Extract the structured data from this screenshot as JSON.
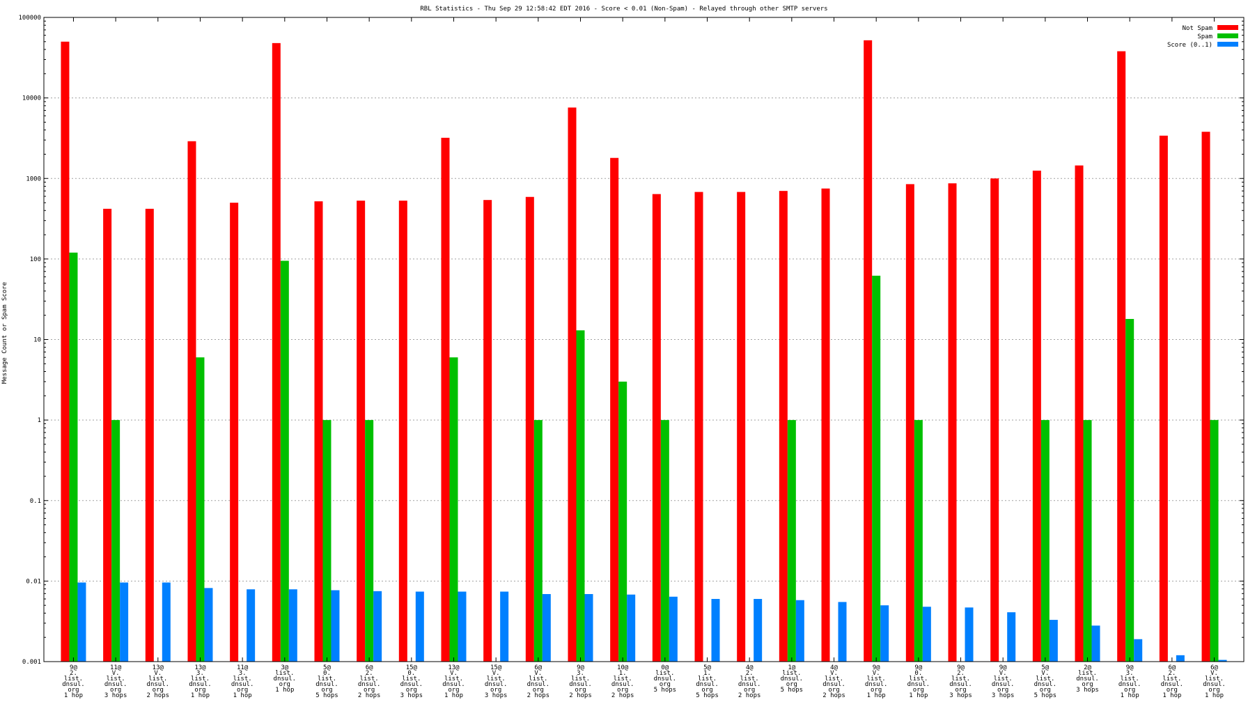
{
  "chart_data": {
    "type": "bar",
    "title": "RBL Statistics - Thu Sep 29 12:58:42 EDT 2016 - Score < 0.01 (Non-Spam) - Relayed through other SMTP servers",
    "xlabel": "",
    "ylabel": "Message Count or Spam Score",
    "yscale": "log",
    "ylim": [
      0.001,
      100000
    ],
    "yticks": [
      "0.001",
      "0.01",
      "0.1",
      "1",
      "10",
      "100",
      "1000",
      "10000",
      "100000"
    ],
    "grid": true,
    "legend_position": "top-right",
    "categories": [
      [
        "9@",
        "2.",
        "list.",
        "dnsul.",
        "org",
        "1 hop"
      ],
      [
        "11@",
        "V.",
        "list.",
        "dnsul.",
        "org",
        "3 hops"
      ],
      [
        "13@",
        "V.",
        "list.",
        "dnsul.",
        "org",
        "2 hops"
      ],
      [
        "13@",
        "3.",
        "list.",
        "dnsul.",
        "org",
        "1 hop"
      ],
      [
        "11@",
        "3.",
        "list.",
        "dnsul.",
        "org",
        "1 hop"
      ],
      [
        "3@",
        "list.",
        "dnsul.",
        "org",
        "1 hop"
      ],
      [
        "5@",
        "0.",
        "list.",
        "dnsul.",
        "org",
        "5 hops"
      ],
      [
        "6@",
        "2.",
        "list.",
        "dnsul.",
        "org",
        "2 hops"
      ],
      [
        "15@",
        "0.",
        "list.",
        "dnsul.",
        "org",
        "3 hops"
      ],
      [
        "13@",
        "V.",
        "list.",
        "dnsul.",
        "org",
        "1 hop"
      ],
      [
        "15@",
        "V.",
        "list.",
        "dnsul.",
        "org",
        "3 hops"
      ],
      [
        "6@",
        "V.",
        "list.",
        "dnsul.",
        "org",
        "2 hops"
      ],
      [
        "9@",
        "3.",
        "list.",
        "dnsul.",
        "org",
        "2 hops"
      ],
      [
        "10@",
        "1.",
        "list.",
        "dnsul.",
        "org",
        "2 hops"
      ],
      [
        "0@",
        "list.",
        "dnsul.",
        "org",
        "5 hops"
      ],
      [
        "5@",
        "1.",
        "list.",
        "dnsul.",
        "org",
        "5 hops"
      ],
      [
        "4@",
        "2.",
        "list.",
        "dnsul.",
        "org",
        "2 hops"
      ],
      [
        "1@",
        "list.",
        "dnsul.",
        "org",
        "5 hops"
      ],
      [
        "4@",
        "V.",
        "list.",
        "dnsul.",
        "org",
        "2 hops"
      ],
      [
        "9@",
        "V.",
        "list.",
        "dnsul.",
        "org",
        "1 hop"
      ],
      [
        "9@",
        "0.",
        "list.",
        "dnsul.",
        "org",
        "1 hop"
      ],
      [
        "9@",
        "2.",
        "list.",
        "dnsul.",
        "org",
        "3 hops"
      ],
      [
        "9@",
        "V.",
        "list.",
        "dnsul.",
        "org",
        "3 hops"
      ],
      [
        "5@",
        "V.",
        "list.",
        "dnsul.",
        "org",
        "5 hops"
      ],
      [
        "2@",
        "list.",
        "dnsul.",
        "org",
        "3 hops"
      ],
      [
        "9@",
        "3.",
        "list.",
        "dnsul.",
        "org",
        "1 hop"
      ],
      [
        "6@",
        "2.",
        "list.",
        "dnsul.",
        "org",
        "1 hop"
      ],
      [
        "6@",
        "V.",
        "list.",
        "dnsul.",
        "org",
        "1 hop"
      ]
    ],
    "series": [
      {
        "name": "Not Spam",
        "color": "#ff0000",
        "values": [
          50000,
          420,
          420,
          2900,
          500,
          48000,
          520,
          530,
          530,
          3200,
          540,
          590,
          7600,
          1800,
          640,
          680,
          680,
          700,
          750,
          52000,
          850,
          870,
          1000,
          1250,
          1450,
          38000,
          3400,
          3800
        ]
      },
      {
        "name": "Spam",
        "color": "#00c000",
        "values": [
          120,
          1,
          null,
          6,
          null,
          95,
          1,
          1,
          null,
          6,
          null,
          1,
          13,
          3,
          1,
          null,
          null,
          1,
          null,
          62,
          1,
          null,
          null,
          1,
          1,
          18,
          null,
          1
        ]
      },
      {
        "name": "Score (0..1)",
        "color": "#0080ff",
        "values": [
          0.0096,
          0.0096,
          0.0096,
          0.0082,
          0.0079,
          0.0079,
          0.0077,
          0.0075,
          0.0074,
          0.0074,
          0.0074,
          0.0069,
          0.0069,
          0.0068,
          0.0064,
          0.006,
          0.006,
          0.0058,
          0.0055,
          0.005,
          0.0048,
          0.0047,
          0.0041,
          0.0033,
          0.0028,
          0.0019,
          0.0012,
          0.00105
        ]
      }
    ]
  }
}
